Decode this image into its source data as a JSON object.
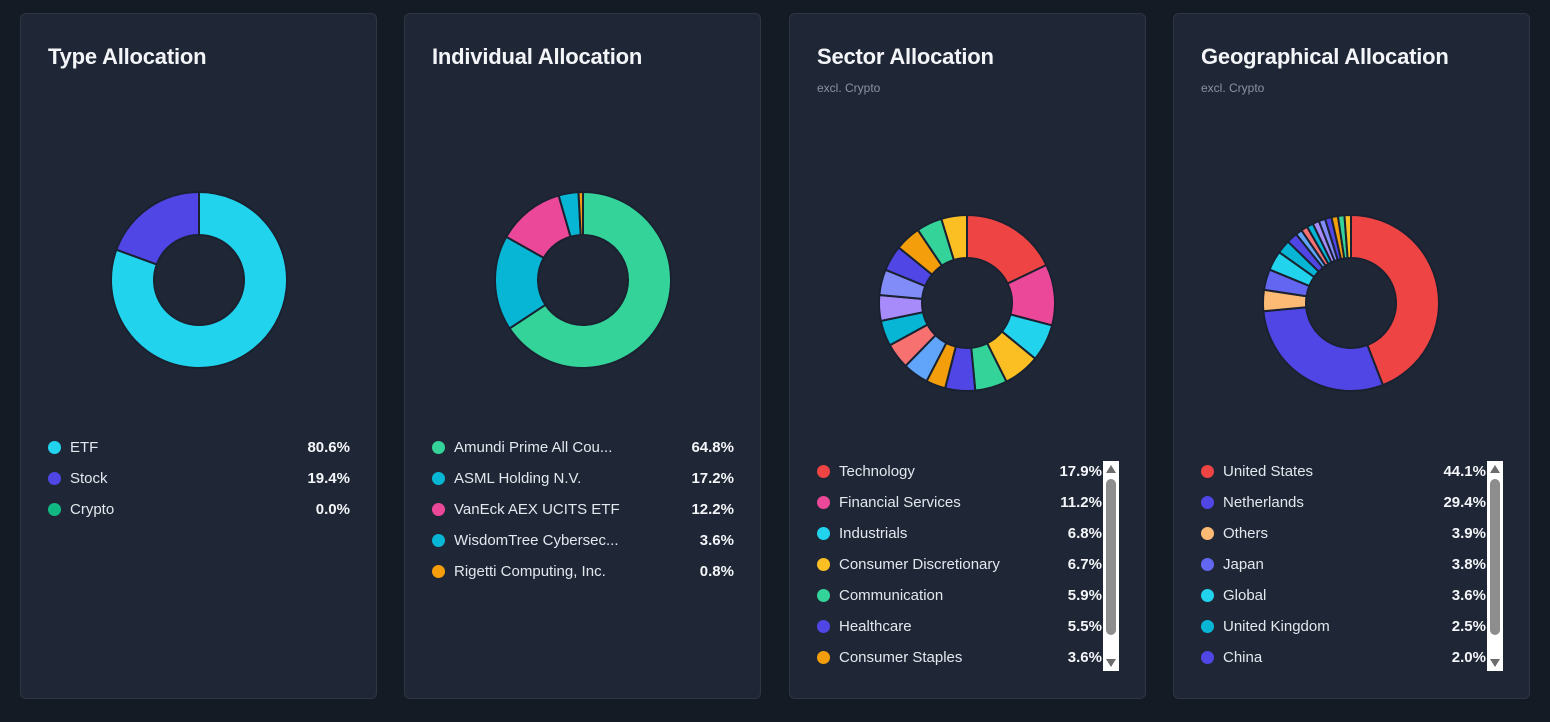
{
  "cards": [
    {
      "title": "Type Allocation",
      "subtitle": "",
      "items": [
        {
          "name": "ETF",
          "pct": "80.6%",
          "value": 80.6,
          "color": "#22d3ee"
        },
        {
          "name": "Stock",
          "pct": "19.4%",
          "value": 19.4,
          "color": "#4f46e5"
        },
        {
          "name": "Crypto",
          "pct": "0.0%",
          "value": 0.0,
          "color": "#10b981"
        }
      ]
    },
    {
      "title": "Individual Allocation",
      "subtitle": "",
      "items": [
        {
          "name": "Amundi Prime All Cou...",
          "pct": "64.8%",
          "value": 64.8,
          "color": "#34d399"
        },
        {
          "name": "ASML Holding N.V.",
          "pct": "17.2%",
          "value": 17.2,
          "color": "#06b6d4"
        },
        {
          "name": "VanEck AEX UCITS ETF",
          "pct": "12.2%",
          "value": 12.2,
          "color": "#ec4899"
        },
        {
          "name": "WisdomTree Cybersec...",
          "pct": "3.6%",
          "value": 3.6,
          "color": "#06b6d4"
        },
        {
          "name": "Rigetti Computing, Inc.",
          "pct": "0.8%",
          "value": 0.8,
          "color": "#f59e0b"
        }
      ]
    },
    {
      "title": "Sector Allocation",
      "subtitle": "excl. Crypto",
      "items": [
        {
          "name": "Technology",
          "pct": "17.9%",
          "value": 17.9,
          "color": "#ef4444"
        },
        {
          "name": "Financial Services",
          "pct": "11.2%",
          "value": 11.2,
          "color": "#ec4899"
        },
        {
          "name": "Industrials",
          "pct": "6.8%",
          "value": 6.8,
          "color": "#22d3ee"
        },
        {
          "name": "Consumer Discretionary",
          "pct": "6.7%",
          "value": 6.7,
          "color": "#fbbf24"
        },
        {
          "name": "Communication",
          "pct": "5.9%",
          "value": 5.9,
          "color": "#34d399"
        },
        {
          "name": "Healthcare",
          "pct": "5.5%",
          "value": 5.5,
          "color": "#4f46e5"
        },
        {
          "name": "Consumer Staples",
          "pct": "3.6%",
          "value": 3.6,
          "color": "#f59e0b"
        }
      ]
    },
    {
      "title": "Geographical Allocation",
      "subtitle": "excl. Crypto",
      "items": [
        {
          "name": "United States",
          "pct": "44.1%",
          "value": 44.1,
          "color": "#ef4444"
        },
        {
          "name": "Netherlands",
          "pct": "29.4%",
          "value": 29.4,
          "color": "#4f46e5"
        },
        {
          "name": "Others",
          "pct": "3.9%",
          "value": 3.9,
          "color": "#fdba74"
        },
        {
          "name": "Japan",
          "pct": "3.8%",
          "value": 3.8,
          "color": "#6366f1"
        },
        {
          "name": "Global",
          "pct": "3.6%",
          "value": 3.6,
          "color": "#22d3ee"
        },
        {
          "name": "United Kingdom",
          "pct": "2.5%",
          "value": 2.5,
          "color": "#06b6d4"
        },
        {
          "name": "China",
          "pct": "2.0%",
          "value": 2.0,
          "color": "#4f46e5"
        }
      ]
    }
  ]
}
